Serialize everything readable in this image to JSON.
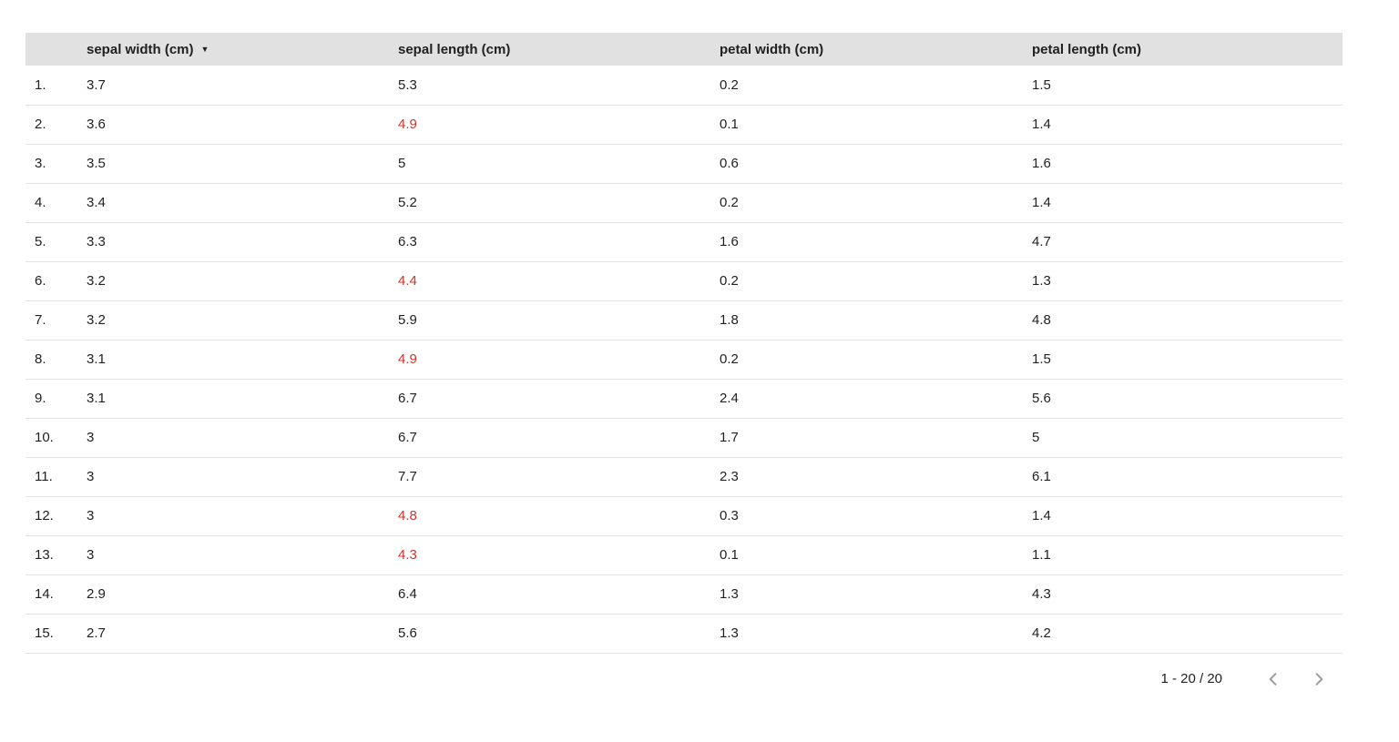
{
  "colors": {
    "header_bg": "#e1e1e1",
    "text": "#212121",
    "negative_value": "#d0352c",
    "divider": "#e3e3e3",
    "chevron": "#9e9e9e"
  },
  "icons": {
    "sort_descending": "▼",
    "prev_page": "chevron-left",
    "next_page": "chevron-right"
  },
  "table": {
    "columns": [
      {
        "label": "sepal width (cm)",
        "sorted": "descending"
      },
      {
        "label": "sepal length (cm)"
      },
      {
        "label": "petal width (cm)"
      },
      {
        "label": "petal length (cm)"
      }
    ],
    "rows": [
      {
        "index": "1.",
        "cells": [
          {
            "value": "3.7"
          },
          {
            "value": "5.3"
          },
          {
            "value": "0.2"
          },
          {
            "value": "1.5"
          }
        ]
      },
      {
        "index": "2.",
        "cells": [
          {
            "value": "3.6"
          },
          {
            "value": "4.9",
            "highlight": true
          },
          {
            "value": "0.1"
          },
          {
            "value": "1.4"
          }
        ]
      },
      {
        "index": "3.",
        "cells": [
          {
            "value": "3.5"
          },
          {
            "value": "5"
          },
          {
            "value": "0.6"
          },
          {
            "value": "1.6"
          }
        ]
      },
      {
        "index": "4.",
        "cells": [
          {
            "value": "3.4"
          },
          {
            "value": "5.2"
          },
          {
            "value": "0.2"
          },
          {
            "value": "1.4"
          }
        ]
      },
      {
        "index": "5.",
        "cells": [
          {
            "value": "3.3"
          },
          {
            "value": "6.3"
          },
          {
            "value": "1.6"
          },
          {
            "value": "4.7"
          }
        ]
      },
      {
        "index": "6.",
        "cells": [
          {
            "value": "3.2"
          },
          {
            "value": "4.4",
            "highlight": true
          },
          {
            "value": "0.2"
          },
          {
            "value": "1.3"
          }
        ]
      },
      {
        "index": "7.",
        "cells": [
          {
            "value": "3.2"
          },
          {
            "value": "5.9"
          },
          {
            "value": "1.8"
          },
          {
            "value": "4.8"
          }
        ]
      },
      {
        "index": "8.",
        "cells": [
          {
            "value": "3.1"
          },
          {
            "value": "4.9",
            "highlight": true
          },
          {
            "value": "0.2"
          },
          {
            "value": "1.5"
          }
        ]
      },
      {
        "index": "9.",
        "cells": [
          {
            "value": "3.1"
          },
          {
            "value": "6.7"
          },
          {
            "value": "2.4"
          },
          {
            "value": "5.6"
          }
        ]
      },
      {
        "index": "10.",
        "cells": [
          {
            "value": "3"
          },
          {
            "value": "6.7"
          },
          {
            "value": "1.7"
          },
          {
            "value": "5"
          }
        ]
      },
      {
        "index": "11.",
        "cells": [
          {
            "value": "3"
          },
          {
            "value": "7.7"
          },
          {
            "value": "2.3"
          },
          {
            "value": "6.1"
          }
        ]
      },
      {
        "index": "12.",
        "cells": [
          {
            "value": "3"
          },
          {
            "value": "4.8",
            "highlight": true
          },
          {
            "value": "0.3"
          },
          {
            "value": "1.4"
          }
        ]
      },
      {
        "index": "13.",
        "cells": [
          {
            "value": "3"
          },
          {
            "value": "4.3",
            "highlight": true
          },
          {
            "value": "0.1"
          },
          {
            "value": "1.1"
          }
        ]
      },
      {
        "index": "14.",
        "cells": [
          {
            "value": "2.9"
          },
          {
            "value": "6.4"
          },
          {
            "value": "1.3"
          },
          {
            "value": "4.3"
          }
        ]
      },
      {
        "index": "15.",
        "cells": [
          {
            "value": "2.7"
          },
          {
            "value": "5.6"
          },
          {
            "value": "1.3"
          },
          {
            "value": "4.2"
          }
        ]
      }
    ]
  },
  "pagination": {
    "range_label": "1 - 20 / 20"
  },
  "chart_data": {
    "type": "table",
    "title": "",
    "columns": [
      "sepal width (cm)",
      "sepal length (cm)",
      "petal width (cm)",
      "petal length (cm)"
    ],
    "sorted_by": "sepal width (cm)",
    "sort_order": "descending",
    "rows": [
      [
        3.7,
        5.3,
        0.2,
        1.5
      ],
      [
        3.6,
        4.9,
        0.1,
        1.4
      ],
      [
        3.5,
        5.0,
        0.6,
        1.6
      ],
      [
        3.4,
        5.2,
        0.2,
        1.4
      ],
      [
        3.3,
        6.3,
        1.6,
        4.7
      ],
      [
        3.2,
        4.4,
        0.2,
        1.3
      ],
      [
        3.2,
        5.9,
        1.8,
        4.8
      ],
      [
        3.1,
        4.9,
        0.2,
        1.5
      ],
      [
        3.1,
        6.7,
        2.4,
        5.6
      ],
      [
        3.0,
        6.7,
        1.7,
        5.0
      ],
      [
        3.0,
        7.7,
        2.3,
        6.1
      ],
      [
        3.0,
        4.8,
        0.3,
        1.4
      ],
      [
        3.0,
        4.3,
        0.1,
        1.1
      ],
      [
        2.9,
        6.4,
        1.3,
        4.3
      ],
      [
        2.7,
        5.6,
        1.3,
        4.2
      ]
    ],
    "highlighted_red_cells_column": "sepal length (cm)",
    "highlighted_red_values": [
      4.9,
      4.4,
      4.9,
      4.8,
      4.3
    ],
    "pagination": "1 - 20 / 20"
  }
}
